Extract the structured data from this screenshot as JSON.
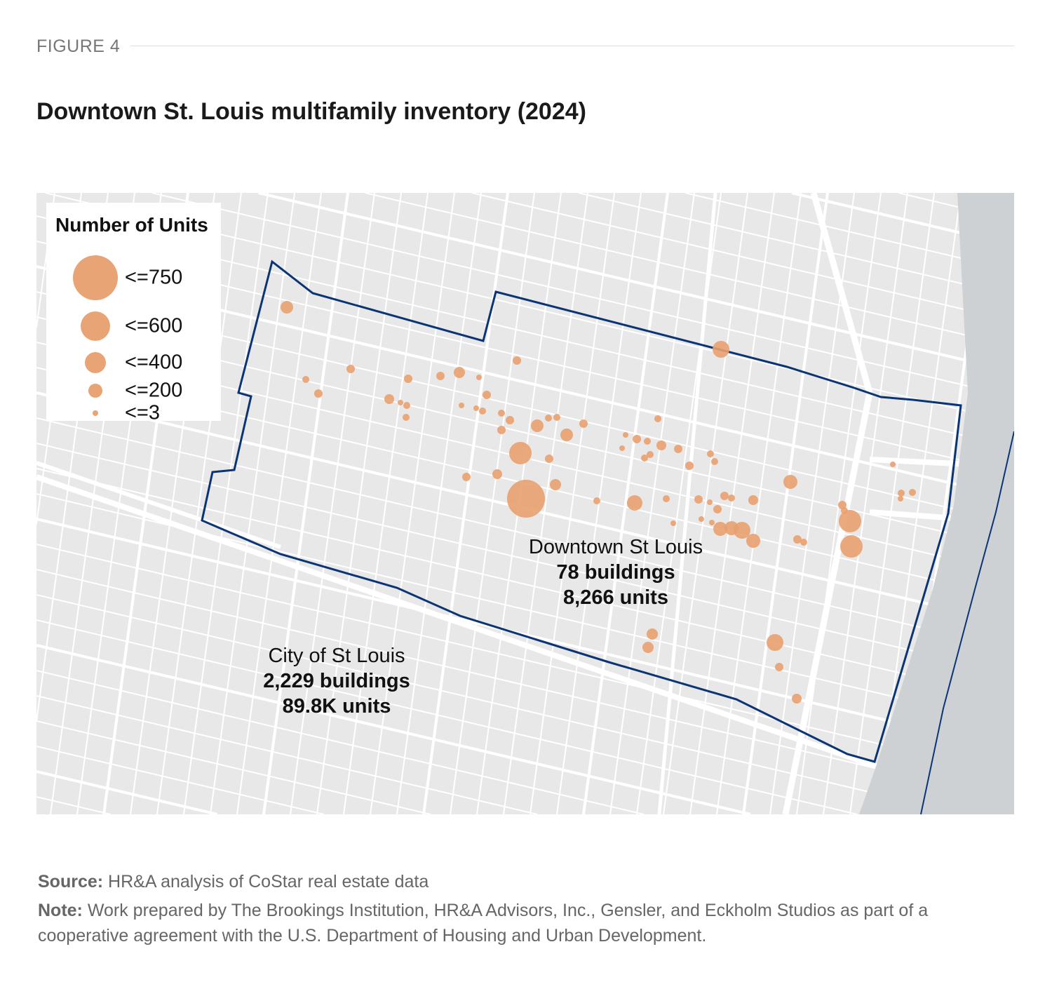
{
  "figure_label": "FIGURE 4",
  "title": "Downtown St. Louis multifamily inventory (2024)",
  "colors": {
    "dot": "#e9a070",
    "boundary": "#0b3474",
    "river": "#cdd1d4",
    "land": "#e8e8e8",
    "street": "#ffffff"
  },
  "legend": {
    "title": "Number of Units",
    "items": [
      {
        "label": "<=750"
      },
      {
        "label": "<=600"
      },
      {
        "label": "<=400"
      },
      {
        "label": "<=200"
      },
      {
        "label": "<=3"
      }
    ]
  },
  "downtown": {
    "name": "Downtown St Louis",
    "buildings": "78 buildings",
    "units": "8,266 units"
  },
  "city": {
    "name": "City of St Louis",
    "buildings": "2,229 buildings",
    "units": "89.8K units"
  },
  "footer": {
    "source_label": "Source:",
    "source_text": "HR&A analysis of CoStar real estate data",
    "note_label": "Note:",
    "note_text": "Work prepared by The Brookings Institution, HR&A Advisors, Inc., Gensler, and Eckholm Studios as part of a cooperative agreement with the U.S. Department of Housing and Urban Development."
  }
}
